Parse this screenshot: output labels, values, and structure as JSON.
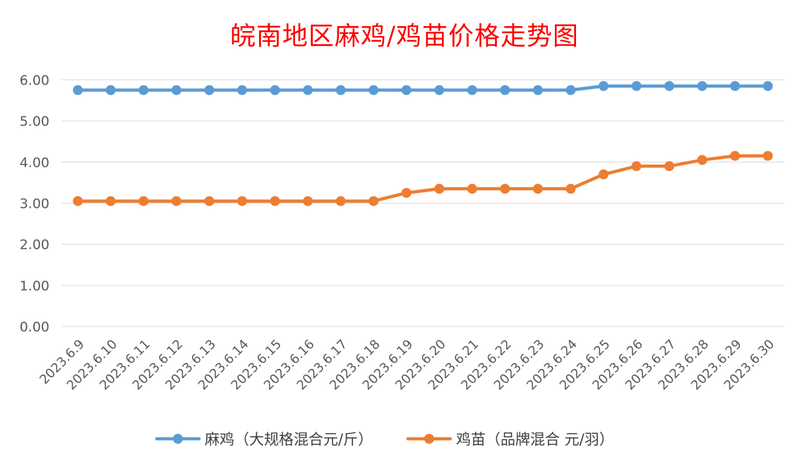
{
  "chart_data": {
    "type": "line",
    "title": "皖南地区麻鸡/鸡苗价格走势图",
    "categories": [
      "2023.6.9",
      "2023.6.10",
      "2023.6.11",
      "2023.6.12",
      "2023.6.13",
      "2023.6.14",
      "2023.6.15",
      "2023.6.16",
      "2023.6.17",
      "2023.6.18",
      "2023.6.19",
      "2023.6.20",
      "2023.6.21",
      "2023.6.22",
      "2023.6.23",
      "2023.6.24",
      "2023.6.25",
      "2023.6.26",
      "2023.6.27",
      "2023.6.28",
      "2023.6.29",
      "2023.6.30"
    ],
    "y_ticks": [
      "0.00",
      "1.00",
      "2.00",
      "3.00",
      "4.00",
      "5.00",
      "6.00"
    ],
    "ylim": [
      0,
      6
    ],
    "grid": true,
    "legend_position": "bottom",
    "series": [
      {
        "name": "麻鸡（大规格混合元/斤）",
        "color": "#5b9bd5",
        "values": [
          5.75,
          5.75,
          5.75,
          5.75,
          5.75,
          5.75,
          5.75,
          5.75,
          5.75,
          5.75,
          5.75,
          5.75,
          5.75,
          5.75,
          5.75,
          5.75,
          5.85,
          5.85,
          5.85,
          5.85,
          5.85,
          5.85
        ]
      },
      {
        "name": "鸡苗（品牌混合 元/羽）",
        "color": "#ed7d31",
        "values": [
          3.05,
          3.05,
          3.05,
          3.05,
          3.05,
          3.05,
          3.05,
          3.05,
          3.05,
          3.05,
          3.25,
          3.35,
          3.35,
          3.35,
          3.35,
          3.35,
          3.7,
          3.9,
          3.9,
          4.05,
          4.15,
          4.15
        ]
      }
    ]
  }
}
